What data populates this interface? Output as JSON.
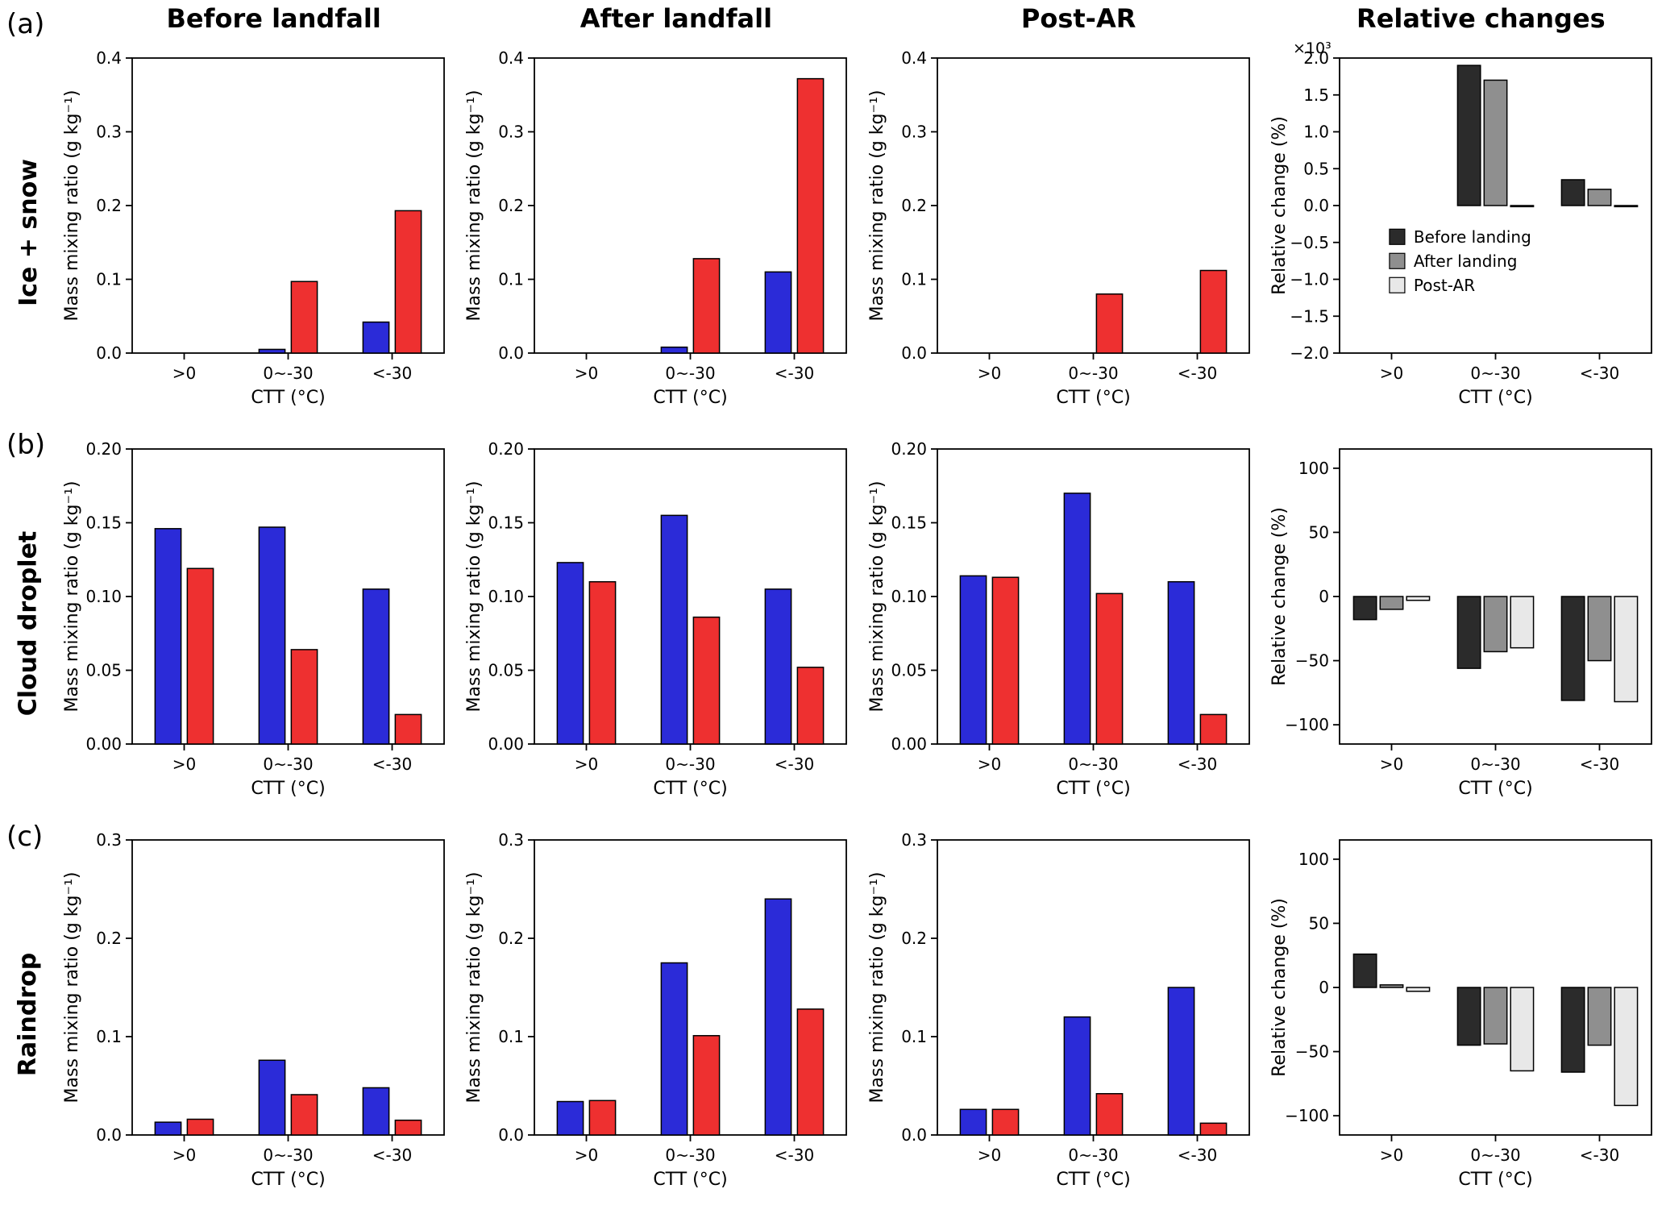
{
  "figure": {
    "panel_labels": [
      "(a)",
      "(b)",
      "(c)"
    ],
    "row_labels": [
      "Ice + snow",
      "Cloud droplet",
      "Raindrop"
    ],
    "column_titles": [
      "Before landfall",
      "After landfall",
      "Post-AR",
      "Relative changes"
    ],
    "colors": {
      "blue": "#2b2bd8",
      "red": "#ee3030",
      "dark": "#2b2b2b",
      "gray": "#8f8f8f",
      "light": "#e8e8e8"
    },
    "legend": {
      "items": [
        {
          "label": "Before landing",
          "color": "dark"
        },
        {
          "label": "After landing",
          "color": "gray"
        },
        {
          "label": "Post-AR",
          "color": "light"
        }
      ]
    }
  },
  "chart_data": [
    {
      "type": "bar",
      "panel": "a",
      "title": "Before landfall",
      "categories": [
        ">0",
        "0~-30",
        "<-30"
      ],
      "series": [
        {
          "name": "blue",
          "color": "blue",
          "values": [
            0,
            0.005,
            0.042
          ]
        },
        {
          "name": "red",
          "color": "red",
          "values": [
            0,
            0.097,
            0.193
          ]
        }
      ],
      "ylabel": "Mass mixing ratio (g kg⁻¹)",
      "xlabel": "CTT (°C)",
      "ylim": [
        0,
        0.4
      ],
      "yticks": [
        0.0,
        0.1,
        0.2,
        0.3,
        0.4
      ],
      "ytick_labels": [
        "0.0",
        "0.1",
        "0.2",
        "0.3",
        "0.4"
      ]
    },
    {
      "type": "bar",
      "panel": "a",
      "title": "After landfall",
      "categories": [
        ">0",
        "0~-30",
        "<-30"
      ],
      "series": [
        {
          "name": "blue",
          "color": "blue",
          "values": [
            0,
            0.008,
            0.11
          ]
        },
        {
          "name": "red",
          "color": "red",
          "values": [
            0,
            0.128,
            0.372
          ]
        }
      ],
      "ylabel": "Mass mixing ratio (g kg⁻¹)",
      "xlabel": "CTT (°C)",
      "ylim": [
        0,
        0.4
      ],
      "yticks": [
        0.0,
        0.1,
        0.2,
        0.3,
        0.4
      ],
      "ytick_labels": [
        "0.0",
        "0.1",
        "0.2",
        "0.3",
        "0.4"
      ]
    },
    {
      "type": "bar",
      "panel": "a",
      "title": "Post-AR",
      "categories": [
        ">0",
        "0~-30",
        "<-30"
      ],
      "series": [
        {
          "name": "blue",
          "color": "blue",
          "values": [
            0,
            0,
            0
          ]
        },
        {
          "name": "red",
          "color": "red",
          "values": [
            0,
            0.08,
            0.112
          ]
        }
      ],
      "ylabel": "Mass mixing ratio (g kg⁻¹)",
      "xlabel": "CTT (°C)",
      "ylim": [
        0,
        0.4
      ],
      "yticks": [
        0.0,
        0.1,
        0.2,
        0.3,
        0.4
      ],
      "ytick_labels": [
        "0.0",
        "0.1",
        "0.2",
        "0.3",
        "0.4"
      ]
    },
    {
      "type": "bar",
      "panel": "a",
      "title": "Relative changes",
      "categories": [
        ">0",
        "0~-30",
        "<-30"
      ],
      "series": [
        {
          "name": "before-landing",
          "color": "dark",
          "values": [
            0,
            1900,
            350
          ]
        },
        {
          "name": "after-landing",
          "color": "gray",
          "values": [
            0,
            1700,
            220
          ]
        },
        {
          "name": "post-ar",
          "color": "light",
          "values": [
            0,
            -15,
            -15
          ]
        }
      ],
      "ylabel": "Relative change (%)",
      "xlabel": "CTT (°C)",
      "ylim": [
        -2000,
        2000
      ],
      "yticks": [
        2000,
        1500,
        1000,
        500,
        0,
        -500,
        -1000,
        -1500,
        -2000
      ],
      "ytick_labels": [
        "2.0",
        "1.5",
        "1.0",
        "0.5",
        "0.0",
        "−0.5",
        "−1.0",
        "−1.5",
        "−2.0"
      ],
      "exponent": "×10³",
      "show_legend": true
    },
    {
      "type": "bar",
      "panel": "b",
      "title": "Before landfall",
      "categories": [
        ">0",
        "0~-30",
        "<-30"
      ],
      "series": [
        {
          "name": "blue",
          "color": "blue",
          "values": [
            0.146,
            0.147,
            0.105
          ]
        },
        {
          "name": "red",
          "color": "red",
          "values": [
            0.119,
            0.064,
            0.02
          ]
        }
      ],
      "ylabel": "Mass mixing ratio (g kg⁻¹)",
      "xlabel": "CTT (°C)",
      "ylim": [
        0,
        0.2
      ],
      "yticks": [
        0.0,
        0.05,
        0.1,
        0.15,
        0.2
      ],
      "ytick_labels": [
        "0.00",
        "0.05",
        "0.10",
        "0.15",
        "0.20"
      ]
    },
    {
      "type": "bar",
      "panel": "b",
      "title": "After landfall",
      "categories": [
        ">0",
        "0~-30",
        "<-30"
      ],
      "series": [
        {
          "name": "blue",
          "color": "blue",
          "values": [
            0.123,
            0.155,
            0.105
          ]
        },
        {
          "name": "red",
          "color": "red",
          "values": [
            0.11,
            0.086,
            0.052
          ]
        }
      ],
      "ylabel": "Mass mixing ratio (g kg⁻¹)",
      "xlabel": "CTT (°C)",
      "ylim": [
        0,
        0.2
      ],
      "yticks": [
        0.0,
        0.05,
        0.1,
        0.15,
        0.2
      ],
      "ytick_labels": [
        "0.00",
        "0.05",
        "0.10",
        "0.15",
        "0.20"
      ]
    },
    {
      "type": "bar",
      "panel": "b",
      "title": "Post-AR",
      "categories": [
        ">0",
        "0~-30",
        "<-30"
      ],
      "series": [
        {
          "name": "blue",
          "color": "blue",
          "values": [
            0.114,
            0.17,
            0.11
          ]
        },
        {
          "name": "red",
          "color": "red",
          "values": [
            0.113,
            0.102,
            0.02
          ]
        }
      ],
      "ylabel": "Mass mixing ratio (g kg⁻¹)",
      "xlabel": "CTT (°C)",
      "ylim": [
        0,
        0.2
      ],
      "yticks": [
        0.0,
        0.05,
        0.1,
        0.15,
        0.2
      ],
      "ytick_labels": [
        "0.00",
        "0.05",
        "0.10",
        "0.15",
        "0.20"
      ]
    },
    {
      "type": "bar",
      "panel": "b",
      "title": "Relative changes",
      "categories": [
        ">0",
        "0~-30",
        "<-30"
      ],
      "series": [
        {
          "name": "before-landing",
          "color": "dark",
          "values": [
            -18,
            -56,
            -81
          ]
        },
        {
          "name": "after-landing",
          "color": "gray",
          "values": [
            -10,
            -43,
            -50
          ]
        },
        {
          "name": "post-ar",
          "color": "light",
          "values": [
            -3,
            -40,
            -82
          ]
        }
      ],
      "ylabel": "Relative change (%)",
      "xlabel": "CTT (°C)",
      "ylim": [
        -115,
        115
      ],
      "yticks": [
        100,
        50,
        0,
        -50,
        -100
      ],
      "ytick_labels": [
        "100",
        "50",
        "0",
        "−50",
        "−100"
      ]
    },
    {
      "type": "bar",
      "panel": "c",
      "title": "Before landfall",
      "categories": [
        ">0",
        "0~-30",
        "<-30"
      ],
      "series": [
        {
          "name": "blue",
          "color": "blue",
          "values": [
            0.013,
            0.076,
            0.048
          ]
        },
        {
          "name": "red",
          "color": "red",
          "values": [
            0.016,
            0.041,
            0.015
          ]
        }
      ],
      "ylabel": "Mass mixing ratio (g kg⁻¹)",
      "xlabel": "CTT (°C)",
      "ylim": [
        0,
        0.3
      ],
      "yticks": [
        0.0,
        0.1,
        0.2,
        0.3
      ],
      "ytick_labels": [
        "0.0",
        "0.1",
        "0.2",
        "0.3"
      ]
    },
    {
      "type": "bar",
      "panel": "c",
      "title": "After landfall",
      "categories": [
        ">0",
        "0~-30",
        "<-30"
      ],
      "series": [
        {
          "name": "blue",
          "color": "blue",
          "values": [
            0.034,
            0.175,
            0.24
          ]
        },
        {
          "name": "red",
          "color": "red",
          "values": [
            0.035,
            0.101,
            0.128
          ]
        }
      ],
      "ylabel": "Mass mixing ratio (g kg⁻¹)",
      "xlabel": "CTT (°C)",
      "ylim": [
        0,
        0.3
      ],
      "yticks": [
        0.0,
        0.1,
        0.2,
        0.3
      ],
      "ytick_labels": [
        "0.0",
        "0.1",
        "0.2",
        "0.3"
      ]
    },
    {
      "type": "bar",
      "panel": "c",
      "title": "Post-AR",
      "categories": [
        ">0",
        "0~-30",
        "<-30"
      ],
      "series": [
        {
          "name": "blue",
          "color": "blue",
          "values": [
            0.026,
            0.12,
            0.15
          ]
        },
        {
          "name": "red",
          "color": "red",
          "values": [
            0.026,
            0.042,
            0.012
          ]
        }
      ],
      "ylabel": "Mass mixing ratio (g kg⁻¹)",
      "xlabel": "CTT (°C)",
      "ylim": [
        0,
        0.3
      ],
      "yticks": [
        0.0,
        0.1,
        0.2,
        0.3
      ],
      "ytick_labels": [
        "0.0",
        "0.1",
        "0.2",
        "0.3"
      ]
    },
    {
      "type": "bar",
      "panel": "c",
      "title": "Relative changes",
      "categories": [
        ">0",
        "0~-30",
        "<-30"
      ],
      "series": [
        {
          "name": "before-landing",
          "color": "dark",
          "values": [
            26,
            -45,
            -66
          ]
        },
        {
          "name": "after-landing",
          "color": "gray",
          "values": [
            2,
            -44,
            -45
          ]
        },
        {
          "name": "post-ar",
          "color": "light",
          "values": [
            -3,
            -65,
            -92
          ]
        }
      ],
      "ylabel": "Relative change (%)",
      "xlabel": "CTT (°C)",
      "ylim": [
        -115,
        115
      ],
      "yticks": [
        100,
        50,
        0,
        -50,
        -100
      ],
      "ytick_labels": [
        "100",
        "50",
        "0",
        "−50",
        "−100"
      ]
    }
  ]
}
